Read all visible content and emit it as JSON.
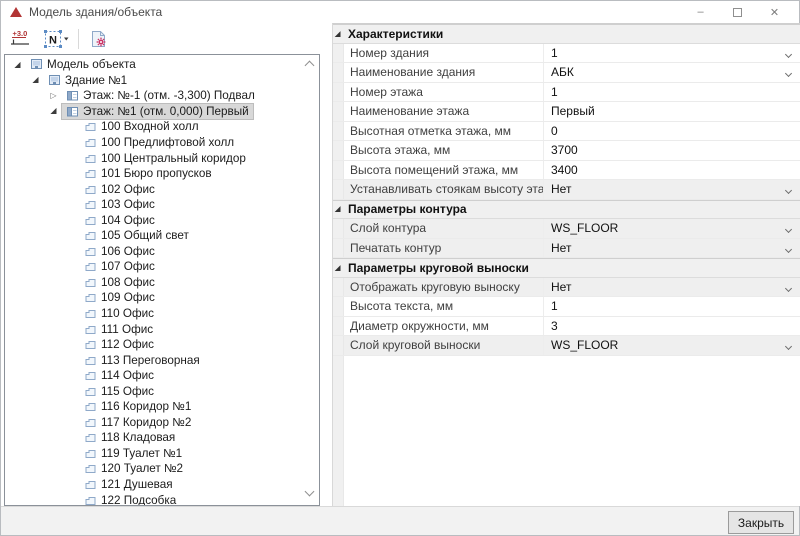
{
  "window": {
    "title": "Модель здания/объекта",
    "minimize_glyph": "–",
    "close_glyph": "✕"
  },
  "toolbar": {
    "elevation_text": "+3.0",
    "n_letter": "N"
  },
  "tree": {
    "items": [
      {
        "label": "Модель объекта",
        "level": 0,
        "icon": "model",
        "expander": "expanded",
        "selected": false
      },
      {
        "label": "Здание №1",
        "level": 1,
        "icon": "model",
        "expander": "expanded",
        "selected": false
      },
      {
        "label": "Этаж: №-1 (отм. -3,300) Подвал",
        "level": 2,
        "icon": "floor",
        "expander": "collapsed",
        "selected": false
      },
      {
        "label": "Этаж: №1 (отм. 0,000) Первый",
        "level": 2,
        "icon": "floor",
        "expander": "expanded",
        "selected": true
      },
      {
        "label": "100 Входной холл",
        "level": 3,
        "icon": "room",
        "expander": "none",
        "selected": false
      },
      {
        "label": "100 Предлифтовой холл",
        "level": 3,
        "icon": "room",
        "expander": "none",
        "selected": false
      },
      {
        "label": "100 Центральный коридор",
        "level": 3,
        "icon": "room",
        "expander": "none",
        "selected": false
      },
      {
        "label": "101 Бюро пропусков",
        "level": 3,
        "icon": "room",
        "expander": "none",
        "selected": false
      },
      {
        "label": "102 Офис",
        "level": 3,
        "icon": "room",
        "expander": "none",
        "selected": false
      },
      {
        "label": "103 Офис",
        "level": 3,
        "icon": "room",
        "expander": "none",
        "selected": false
      },
      {
        "label": "104 Офис",
        "level": 3,
        "icon": "room",
        "expander": "none",
        "selected": false
      },
      {
        "label": "105 Общий свет",
        "level": 3,
        "icon": "room",
        "expander": "none",
        "selected": false
      },
      {
        "label": "106 Офис",
        "level": 3,
        "icon": "room",
        "expander": "none",
        "selected": false
      },
      {
        "label": "107 Офис",
        "level": 3,
        "icon": "room",
        "expander": "none",
        "selected": false
      },
      {
        "label": "108 Офис",
        "level": 3,
        "icon": "room",
        "expander": "none",
        "selected": false
      },
      {
        "label": "109 Офис",
        "level": 3,
        "icon": "room",
        "expander": "none",
        "selected": false
      },
      {
        "label": "110 Офис",
        "level": 3,
        "icon": "room",
        "expander": "none",
        "selected": false
      },
      {
        "label": "111 Офис",
        "level": 3,
        "icon": "room",
        "expander": "none",
        "selected": false
      },
      {
        "label": "112 Офис",
        "level": 3,
        "icon": "room",
        "expander": "none",
        "selected": false
      },
      {
        "label": "113 Переговорная",
        "level": 3,
        "icon": "room",
        "expander": "none",
        "selected": false
      },
      {
        "label": "114 Офис",
        "level": 3,
        "icon": "room",
        "expander": "none",
        "selected": false
      },
      {
        "label": "115 Офис",
        "level": 3,
        "icon": "room",
        "expander": "none",
        "selected": false
      },
      {
        "label": "116 Коридор №1",
        "level": 3,
        "icon": "room",
        "expander": "none",
        "selected": false
      },
      {
        "label": "117 Коридор №2",
        "level": 3,
        "icon": "room",
        "expander": "none",
        "selected": false
      },
      {
        "label": "118 Кладовая",
        "level": 3,
        "icon": "room",
        "expander": "none",
        "selected": false
      },
      {
        "label": "119 Туалет №1",
        "level": 3,
        "icon": "room",
        "expander": "none",
        "selected": false
      },
      {
        "label": "120 Туалет №2",
        "level": 3,
        "icon": "room",
        "expander": "none",
        "selected": false
      },
      {
        "label": "121 Душевая",
        "level": 3,
        "icon": "room",
        "expander": "none",
        "selected": false
      },
      {
        "label": "122 Подсобка",
        "level": 3,
        "icon": "room",
        "expander": "none",
        "selected": false
      }
    ]
  },
  "properties": {
    "sections": [
      {
        "title": "Характеристики",
        "rows": [
          {
            "label": "Номер здания",
            "value": "1",
            "combo": true,
            "gray": false
          },
          {
            "label": "Наименование здания",
            "value": "АБК",
            "combo": true,
            "gray": false
          },
          {
            "label": "Номер этажа",
            "value": "1",
            "combo": false,
            "gray": false
          },
          {
            "label": "Наименование этажа",
            "value": "Первый",
            "combo": false,
            "gray": false
          },
          {
            "label": "Высотная отметка этажа, мм",
            "value": "0",
            "combo": false,
            "gray": false
          },
          {
            "label": "Высота этажа, мм",
            "value": "3700",
            "combo": false,
            "gray": false
          },
          {
            "label": "Высота помещений этажа, мм",
            "value": "3400",
            "combo": false,
            "gray": false
          },
          {
            "label": "Устанавливать стоякам высоту этаж...",
            "value": "Нет",
            "combo": true,
            "gray": true
          }
        ]
      },
      {
        "title": "Параметры контура",
        "rows": [
          {
            "label": "Слой контура",
            "value": "WS_FLOOR",
            "combo": true,
            "gray": true
          },
          {
            "label": "Печатать контур",
            "value": "Нет",
            "combo": true,
            "gray": true
          }
        ]
      },
      {
        "title": "Параметры круговой выноски",
        "rows": [
          {
            "label": "Отображать круговую выноску",
            "value": "Нет",
            "combo": true,
            "gray": true
          },
          {
            "label": "Высота текста, мм",
            "value": "1",
            "combo": false,
            "gray": false
          },
          {
            "label": "Диаметр окружности, мм",
            "value": "3",
            "combo": false,
            "gray": false
          },
          {
            "label": "Слой круговой выноски",
            "value": "WS_FLOOR",
            "combo": true,
            "gray": true
          }
        ]
      }
    ]
  },
  "footer": {
    "close_label": "Закрыть"
  },
  "colors": {
    "selection_bg": "#d8d8d8",
    "header_bg": "#f0f0f0",
    "icon_blue": "#7291b4",
    "logo_red": "#b23434",
    "accent_pink": "#cc3366"
  }
}
